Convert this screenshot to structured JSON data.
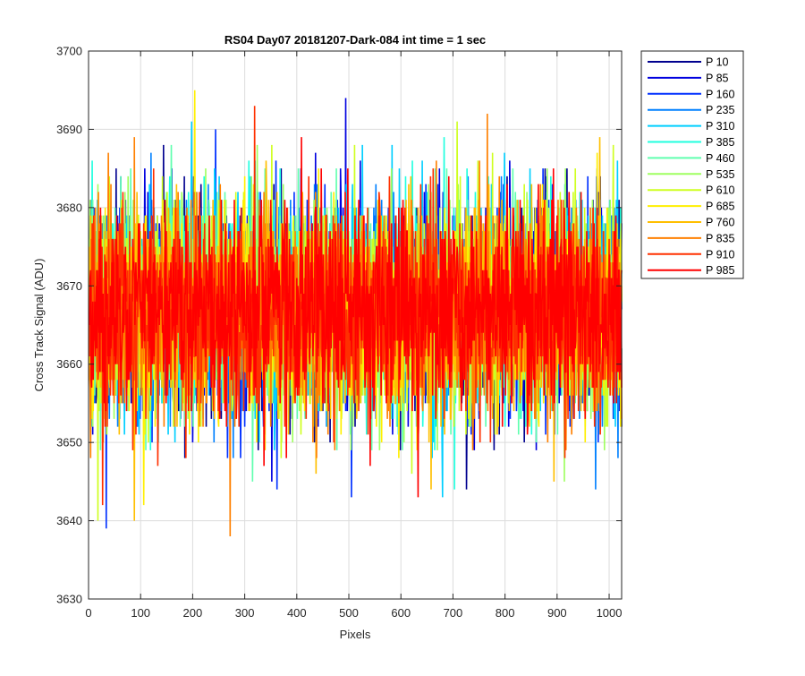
{
  "chart_data": {
    "type": "line",
    "title": "RS04 Day07 20181207-Dark-084 int time = 1 sec",
    "xlabel": "Pixels",
    "ylabel": "Cross Track Signal (ADU)",
    "xlim": [
      0,
      1024
    ],
    "ylim": [
      3630,
      3700
    ],
    "x_ticks": [
      "0",
      "100",
      "200",
      "300",
      "400",
      "500",
      "600",
      "700",
      "800",
      "900",
      "1000"
    ],
    "y_ticks": [
      "3630",
      "3640",
      "3650",
      "3660",
      "3670",
      "3680",
      "3690",
      "3700"
    ],
    "grid": true,
    "legend_position": "outside-top-right",
    "x": "pixel index 1 to 1024 (noise samples)",
    "series": [
      {
        "name": "P 10",
        "color": "#00008f",
        "mean": 3667,
        "min": 3644,
        "max": 3688
      },
      {
        "name": "P 85",
        "color": "#0000df",
        "mean": 3667,
        "min": 3645,
        "max": 3694
      },
      {
        "name": "P 160",
        "color": "#0030ff",
        "mean": 3667,
        "min": 3639,
        "max": 3690
      },
      {
        "name": "P 235",
        "color": "#0080ff",
        "mean": 3667,
        "min": 3644,
        "max": 3687
      },
      {
        "name": "P 310",
        "color": "#00cfff",
        "mean": 3667,
        "min": 3643,
        "max": 3691
      },
      {
        "name": "P 385",
        "color": "#20ffdf",
        "mean": 3667,
        "min": 3644,
        "max": 3689
      },
      {
        "name": "P 460",
        "color": "#60ffaf",
        "mean": 3667,
        "min": 3645,
        "max": 3688
      },
      {
        "name": "P 535",
        "color": "#9fff60",
        "mean": 3667,
        "min": 3645,
        "max": 3688
      },
      {
        "name": "P 610",
        "color": "#cfff20",
        "mean": 3667,
        "min": 3640,
        "max": 3691
      },
      {
        "name": "P 685",
        "color": "#ffef00",
        "mean": 3667,
        "min": 3642,
        "max": 3695
      },
      {
        "name": "P 760",
        "color": "#ffbf00",
        "mean": 3667,
        "min": 3640,
        "max": 3689
      },
      {
        "name": "P 835",
        "color": "#ff8000",
        "mean": 3667,
        "min": 3638,
        "max": 3692
      },
      {
        "name": "P 910",
        "color": "#ff3000",
        "mean": 3667,
        "min": 3642,
        "max": 3693
      },
      {
        "name": "P 985",
        "color": "#ff0000",
        "mean": 3667,
        "min": 3643,
        "max": 3689
      }
    ]
  }
}
